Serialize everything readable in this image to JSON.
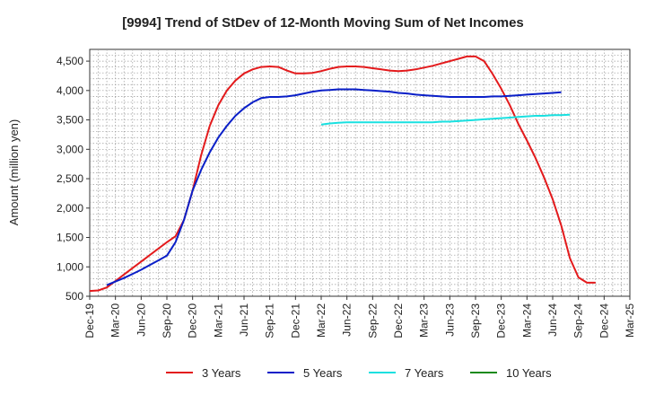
{
  "chart_data": {
    "type": "line",
    "title": "[9994]  Trend of StDev of 12-Month Moving Sum of Net Incomes",
    "ylabel": "Amount (million yen)",
    "xlabel": "",
    "ylim": [
      500,
      4700
    ],
    "yticks": [
      500,
      1000,
      1500,
      2000,
      2500,
      3000,
      3500,
      4000,
      4500
    ],
    "ytick_labels": [
      "500",
      "1,000",
      "1,500",
      "2,000",
      "2,500",
      "3,000",
      "3,500",
      "4,000",
      "4,500"
    ],
    "xticks": [
      "Dec-19",
      "Mar-20",
      "Jun-20",
      "Sep-20",
      "Dec-20",
      "Mar-21",
      "Jun-21",
      "Sep-21",
      "Dec-21",
      "Mar-22",
      "Jun-22",
      "Sep-22",
      "Dec-22",
      "Mar-23",
      "Jun-23",
      "Sep-23",
      "Dec-23",
      "Mar-24",
      "Jun-24",
      "Sep-24",
      "Dec-24",
      "Mar-25"
    ],
    "grid": true,
    "legend_position": "bottom",
    "series": [
      {
        "name": "3 Years",
        "color": "#e31a1c",
        "values": [
          [
            0,
            590
          ],
          [
            1,
            600
          ],
          [
            2,
            650
          ],
          [
            3,
            760
          ],
          [
            4,
            870
          ],
          [
            5,
            980
          ],
          [
            6,
            1090
          ],
          [
            7,
            1200
          ],
          [
            8,
            1310
          ],
          [
            9,
            1420
          ],
          [
            10,
            1520
          ],
          [
            11,
            1800
          ],
          [
            12,
            2300
          ],
          [
            13,
            2900
          ],
          [
            14,
            3400
          ],
          [
            15,
            3750
          ],
          [
            16,
            4000
          ],
          [
            17,
            4170
          ],
          [
            18,
            4290
          ],
          [
            19,
            4360
          ],
          [
            20,
            4400
          ],
          [
            21,
            4410
          ],
          [
            22,
            4400
          ],
          [
            23,
            4340
          ],
          [
            24,
            4290
          ],
          [
            25,
            4290
          ],
          [
            26,
            4300
          ],
          [
            27,
            4330
          ],
          [
            28,
            4370
          ],
          [
            29,
            4400
          ],
          [
            30,
            4410
          ],
          [
            31,
            4410
          ],
          [
            32,
            4400
          ],
          [
            33,
            4380
          ],
          [
            34,
            4360
          ],
          [
            35,
            4340
          ],
          [
            36,
            4330
          ],
          [
            37,
            4340
          ],
          [
            38,
            4360
          ],
          [
            39,
            4390
          ],
          [
            40,
            4420
          ],
          [
            41,
            4460
          ],
          [
            42,
            4500
          ],
          [
            43,
            4540
          ],
          [
            44,
            4580
          ],
          [
            45,
            4580
          ],
          [
            46,
            4500
          ],
          [
            47,
            4280
          ],
          [
            48,
            4030
          ],
          [
            49,
            3750
          ],
          [
            50,
            3430
          ],
          [
            51,
            3150
          ],
          [
            52,
            2850
          ],
          [
            53,
            2520
          ],
          [
            54,
            2150
          ],
          [
            55,
            1700
          ],
          [
            56,
            1150
          ],
          [
            57,
            820
          ],
          [
            58,
            730
          ],
          [
            59,
            730
          ]
        ]
      },
      {
        "name": "5 Years",
        "color": "#0a1fc8",
        "values": [
          [
            2,
            690
          ],
          [
            3,
            750
          ],
          [
            4,
            810
          ],
          [
            5,
            880
          ],
          [
            6,
            950
          ],
          [
            7,
            1030
          ],
          [
            8,
            1110
          ],
          [
            9,
            1190
          ],
          [
            10,
            1420
          ],
          [
            11,
            1800
          ],
          [
            12,
            2300
          ],
          [
            13,
            2650
          ],
          [
            14,
            2950
          ],
          [
            15,
            3200
          ],
          [
            16,
            3400
          ],
          [
            17,
            3570
          ],
          [
            18,
            3700
          ],
          [
            19,
            3800
          ],
          [
            20,
            3870
          ],
          [
            21,
            3890
          ],
          [
            22,
            3890
          ],
          [
            23,
            3900
          ],
          [
            24,
            3920
          ],
          [
            25,
            3950
          ],
          [
            26,
            3980
          ],
          [
            27,
            4000
          ],
          [
            28,
            4010
          ],
          [
            29,
            4020
          ],
          [
            30,
            4020
          ],
          [
            31,
            4020
          ],
          [
            32,
            4010
          ],
          [
            33,
            4000
          ],
          [
            34,
            3990
          ],
          [
            35,
            3980
          ],
          [
            36,
            3960
          ],
          [
            37,
            3950
          ],
          [
            38,
            3930
          ],
          [
            39,
            3920
          ],
          [
            40,
            3910
          ],
          [
            41,
            3900
          ],
          [
            42,
            3890
          ],
          [
            43,
            3890
          ],
          [
            44,
            3890
          ],
          [
            45,
            3890
          ],
          [
            46,
            3890
          ],
          [
            47,
            3900
          ],
          [
            48,
            3900
          ],
          [
            49,
            3910
          ],
          [
            50,
            3920
          ],
          [
            51,
            3930
          ],
          [
            52,
            3940
          ],
          [
            53,
            3950
          ],
          [
            54,
            3960
          ],
          [
            55,
            3970
          ]
        ]
      },
      {
        "name": "7 Years",
        "color": "#19e0e0",
        "values": [
          [
            27,
            3420
          ],
          [
            28,
            3440
          ],
          [
            29,
            3450
          ],
          [
            30,
            3460
          ],
          [
            31,
            3460
          ],
          [
            32,
            3460
          ],
          [
            33,
            3460
          ],
          [
            34,
            3460
          ],
          [
            35,
            3460
          ],
          [
            36,
            3460
          ],
          [
            37,
            3460
          ],
          [
            38,
            3460
          ],
          [
            39,
            3460
          ],
          [
            40,
            3460
          ],
          [
            41,
            3470
          ],
          [
            42,
            3470
          ],
          [
            43,
            3480
          ],
          [
            44,
            3490
          ],
          [
            45,
            3500
          ],
          [
            46,
            3510
          ],
          [
            47,
            3520
          ],
          [
            48,
            3530
          ],
          [
            49,
            3540
          ],
          [
            50,
            3550
          ],
          [
            51,
            3560
          ],
          [
            52,
            3570
          ],
          [
            53,
            3570
          ],
          [
            54,
            3580
          ],
          [
            55,
            3580
          ],
          [
            56,
            3590
          ]
        ]
      },
      {
        "name": "10 Years",
        "color": "#1a8a1a",
        "values": []
      }
    ]
  }
}
